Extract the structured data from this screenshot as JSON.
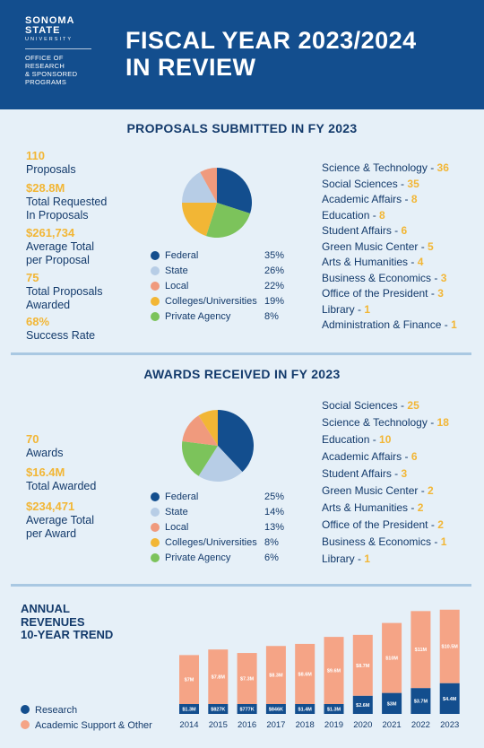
{
  "header": {
    "logo": {
      "line1": "SONOMA",
      "line2": "STATE",
      "line3": "UNIVERSITY",
      "office": [
        "OFFICE OF",
        "RESEARCH",
        "& SPONSORED",
        "PROGRAMS"
      ]
    },
    "title_line1": "FISCAL YEAR 2023/2024",
    "title_line2": "IN REVIEW"
  },
  "colors": {
    "federal": "#134e8e",
    "state": "#b7cde6",
    "local": "#f09a7d",
    "colleges": "#f2b635",
    "private": "#7cc35b",
    "accent": "#f2b635",
    "research": "#134e8e",
    "support": "#f5a486"
  },
  "proposals": {
    "title": "PROPOSALS SUBMITTED IN FY 2023",
    "stats": [
      {
        "value": "110",
        "label": [
          "Proposals"
        ]
      },
      {
        "value": "$28.8M",
        "label": [
          "Total Requested",
          "In Proposals"
        ]
      },
      {
        "value": "$261,734",
        "label": [
          "Average Total",
          "per Proposal"
        ]
      },
      {
        "value": "75",
        "label": [
          "Total Proposals",
          "Awarded"
        ]
      },
      {
        "value": "68%",
        "label": [
          "Success Rate"
        ]
      }
    ],
    "legend": [
      {
        "name": "Federal",
        "pct": "35%"
      },
      {
        "name": "State",
        "pct": "26%"
      },
      {
        "name": "Local",
        "pct": "22%"
      },
      {
        "name": "Colleges/Universities",
        "pct": "19%"
      },
      {
        "name": "Private Agency",
        "pct": "8%"
      }
    ],
    "departments": [
      {
        "name": "Science & Technology",
        "count": "36"
      },
      {
        "name": "Social Sciences",
        "count": "35"
      },
      {
        "name": "Academic Affairs",
        "count": "8"
      },
      {
        "name": "Education",
        "count": "8"
      },
      {
        "name": "Student Affairs",
        "count": "6"
      },
      {
        "name": "Green Music Center",
        "count": "5"
      },
      {
        "name": "Arts & Humanities",
        "count": "4"
      },
      {
        "name": "Business & Economics",
        "count": "3"
      },
      {
        "name": "Office of the President",
        "count": "3"
      },
      {
        "name": "Library",
        "count": "1"
      },
      {
        "name": "Administration & Finance",
        "count": "1"
      }
    ]
  },
  "awards": {
    "title": "AWARDS RECEIVED IN FY 2023",
    "stats": [
      {
        "value": "70",
        "label": [
          "Awards"
        ]
      },
      {
        "value": "$16.4M",
        "label": [
          "Total Awarded"
        ]
      },
      {
        "value": "$234,471",
        "label": [
          "Average Total",
          "per Award"
        ]
      }
    ],
    "legend": [
      {
        "name": "Federal",
        "pct": "25%"
      },
      {
        "name": "State",
        "pct": "14%"
      },
      {
        "name": "Local",
        "pct": "13%"
      },
      {
        "name": "Colleges/Universities",
        "pct": "8%"
      },
      {
        "name": "Private Agency",
        "pct": "6%"
      }
    ],
    "departments": [
      {
        "name": "Social Sciences",
        "count": "25"
      },
      {
        "name": "Science & Technology",
        "count": "18"
      },
      {
        "name": "Education",
        "count": "10"
      },
      {
        "name": "Academic Affairs",
        "count": "6"
      },
      {
        "name": "Student Affairs",
        "count": "3"
      },
      {
        "name": "Green Music Center",
        "count": "2"
      },
      {
        "name": "Arts & Humanities",
        "count": "2"
      },
      {
        "name": "Office of the President",
        "count": "2"
      },
      {
        "name": "Business & Economics",
        "count": "1"
      },
      {
        "name": "Library",
        "count": "1"
      }
    ]
  },
  "trend": {
    "title": [
      "ANNUAL",
      "REVENUES",
      "10-YEAR TREND"
    ],
    "legend": [
      "Research",
      "Academic Support & Other"
    ]
  },
  "chart_data": [
    {
      "type": "pie",
      "categories": [
        "Federal",
        "State",
        "Local",
        "Colleges/Universities",
        "Private Agency"
      ],
      "values": [
        35,
        26,
        22,
        19,
        8
      ],
      "slice_share_order": [
        "Federal",
        "Private Agency",
        "Colleges/Universities",
        "State",
        "Local"
      ],
      "slice_shares": [
        0.3,
        0.25,
        0.2,
        0.17,
        0.08
      ]
    },
    {
      "type": "pie",
      "categories": [
        "Federal",
        "State",
        "Local",
        "Colleges/Universities",
        "Private Agency"
      ],
      "values": [
        25,
        14,
        13,
        8,
        6
      ],
      "slice_share_order": [
        "Federal",
        "State",
        "Private Agency",
        "Local",
        "Colleges/Universities"
      ],
      "slice_shares": [
        0.38,
        0.21,
        0.18,
        0.14,
        0.09
      ]
    },
    {
      "type": "bar",
      "stacked": true,
      "categories": [
        "2014",
        "2015",
        "2016",
        "2017",
        "2018",
        "2019",
        "2020",
        "2021",
        "2022",
        "2023"
      ],
      "series": [
        {
          "name": "Research",
          "values": [
            1.3,
            0.827,
            0.777,
            0.846,
            1.4,
            1.3,
            2.6,
            3,
            3.7,
            4.4
          ],
          "labels": [
            "$1.3M",
            "$827K",
            "$777K",
            "$846K",
            "$1.4M",
            "$1.3M",
            "$2.6M",
            "$3M",
            "$3.7M",
            "$4.4M"
          ]
        },
        {
          "name": "Academic Support & Other",
          "values": [
            7,
            7.8,
            7.3,
            8.3,
            8.6,
            9.6,
            8.7,
            10,
            11,
            10.5
          ],
          "labels": [
            "$7M",
            "$7.8M",
            "$7.3M",
            "$8.3M",
            "$8.6M",
            "$9.6M",
            "$8.7M",
            "$10M",
            "$11M",
            "$10.5M"
          ]
        }
      ],
      "ylim": [
        0,
        15
      ]
    }
  ]
}
